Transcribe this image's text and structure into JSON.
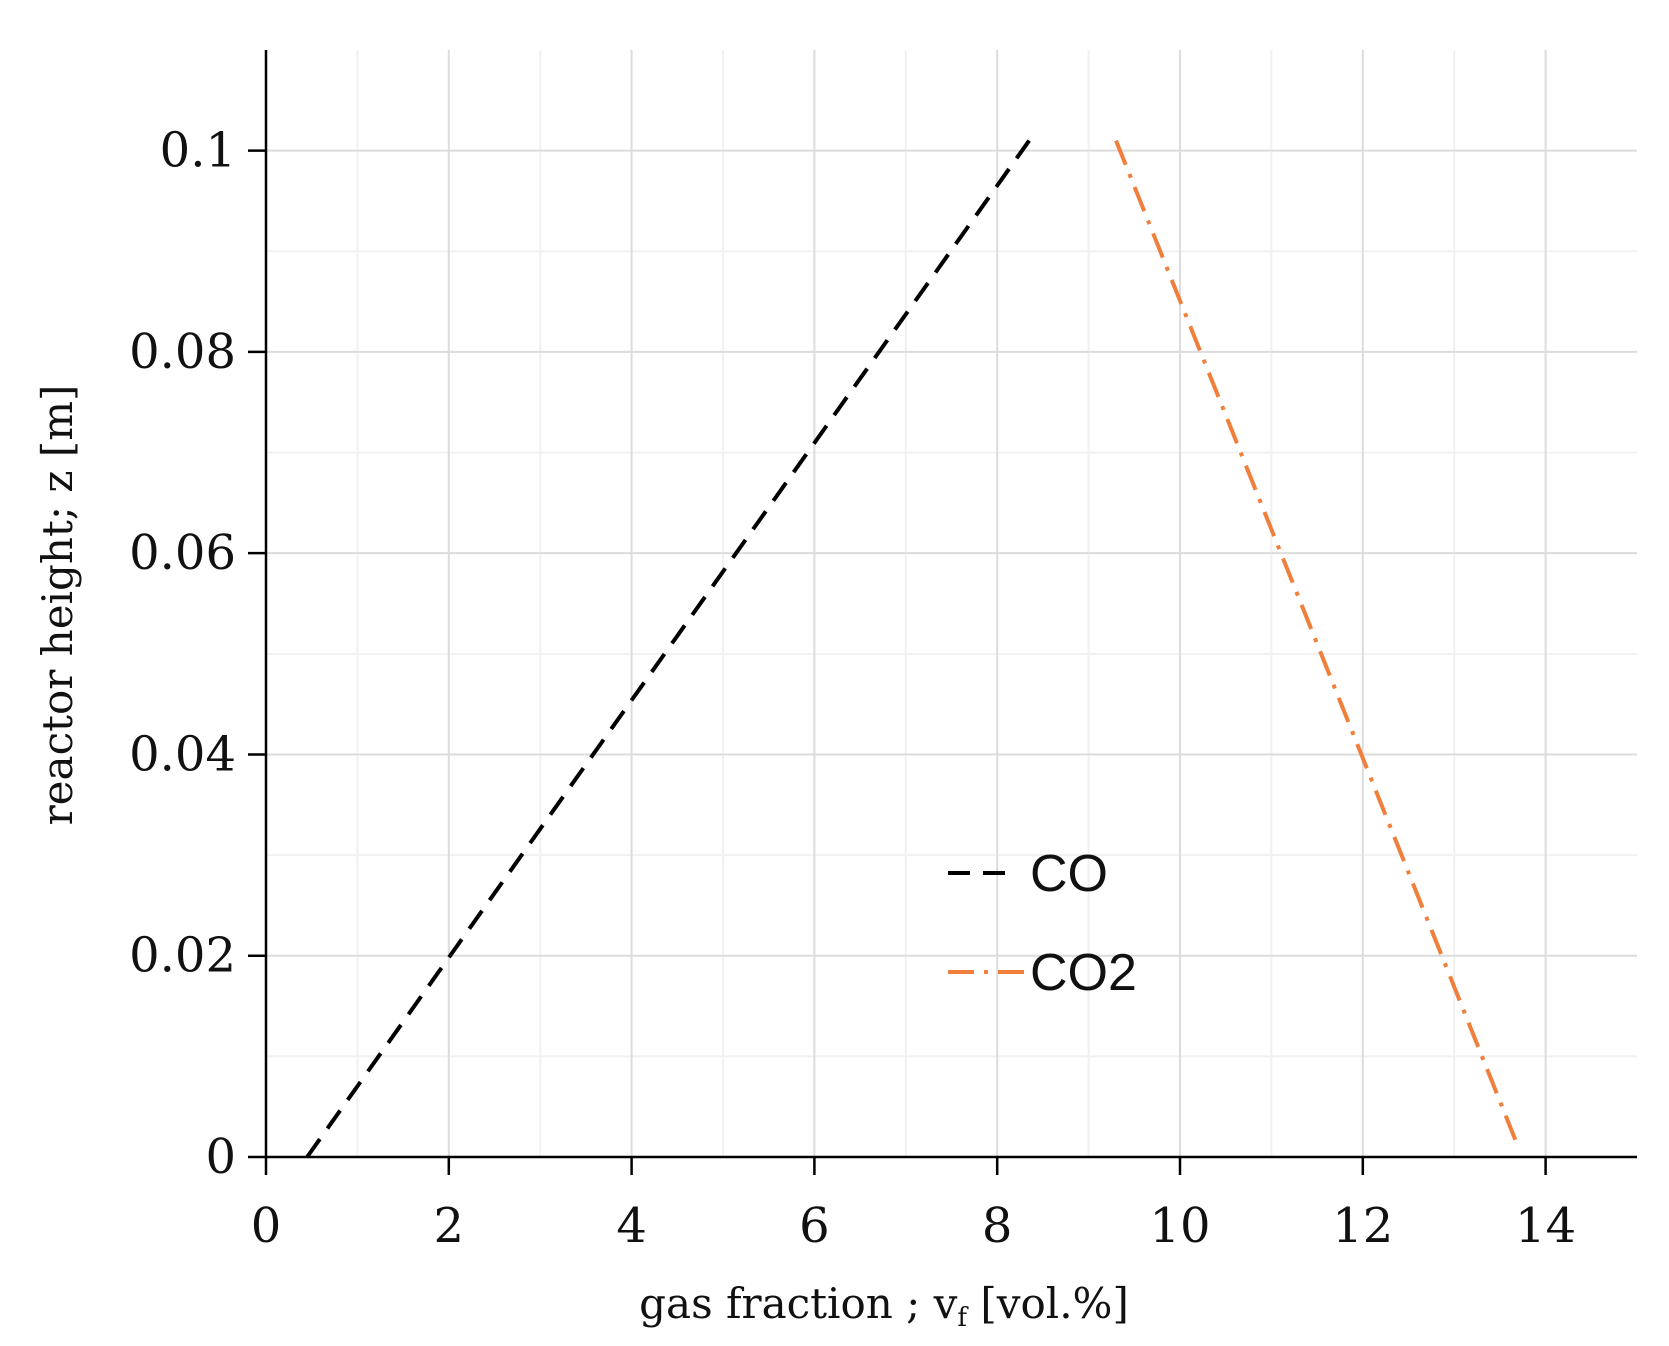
{
  "chart_data": {
    "type": "line",
    "title": "",
    "xlabel_main": "gas fraction ; v",
    "xlabel_sub": "f",
    "xlabel_tail": " [vol.%]",
    "ylabel": "reactor height; z [m]",
    "xlim": [
      0,
      15
    ],
    "ylim": [
      0,
      0.11
    ],
    "xticks": [
      0,
      2,
      4,
      6,
      8,
      10,
      12,
      14
    ],
    "xtick_labels": [
      "0",
      "2",
      "4",
      "6",
      "8",
      "10",
      "12",
      "14"
    ],
    "yticks": [
      0,
      0.02,
      0.04,
      0.06,
      0.08,
      0.1
    ],
    "ytick_labels": [
      "0",
      "0.02",
      "0.04",
      "0.06",
      "0.08",
      "0.1"
    ],
    "grid": true,
    "legend_position": "center",
    "series": [
      {
        "name": "CO",
        "color": "#000000",
        "style": "dashed",
        "x": [
          0.45,
          8.35
        ],
        "y": [
          0.0,
          0.101
        ]
      },
      {
        "name": "CO2",
        "color": "#f07f3c",
        "style": "dashdot",
        "x": [
          9.3,
          13.7
        ],
        "y": [
          0.101,
          0.001
        ]
      }
    ]
  }
}
